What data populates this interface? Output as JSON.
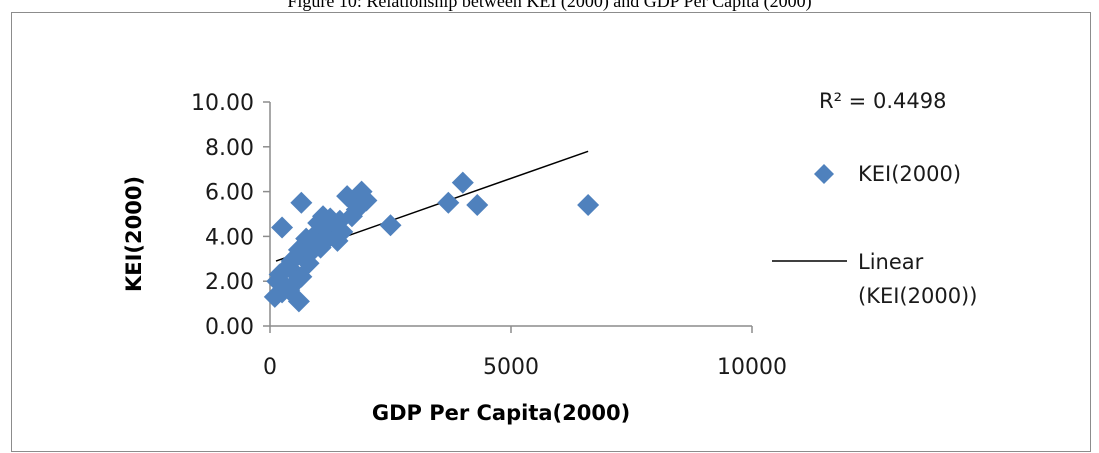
{
  "figure": {
    "caption": "Figure 10: Relationship between KEI (2000) and GDP Per Capita (2000)"
  },
  "chart_data": {
    "type": "scatter",
    "xlabel": "GDP Per Capita(2000)",
    "ylabel": "KEI(2000)",
    "xlim": [
      0,
      10000
    ],
    "ylim": [
      0,
      10
    ],
    "x_ticks": [
      "0",
      "5000",
      "10000"
    ],
    "y_ticks": [
      "0.00",
      "2.00",
      "4.00",
      "6.00",
      "8.00",
      "10.00"
    ],
    "grid": false,
    "legend_position": "right",
    "r_squared_label": "R² = 0.4498",
    "series": [
      {
        "name": "KEI(2000)",
        "marker": "diamond",
        "color": "#4f81bd",
        "points": [
          [
            100,
            1.3
          ],
          [
            150,
            2.0
          ],
          [
            200,
            2.3
          ],
          [
            250,
            1.5
          ],
          [
            300,
            1.8
          ],
          [
            350,
            2.6
          ],
          [
            250,
            4.4
          ],
          [
            400,
            1.6
          ],
          [
            450,
            2.9
          ],
          [
            500,
            2.4
          ],
          [
            550,
            2.0
          ],
          [
            600,
            1.1
          ],
          [
            650,
            2.2
          ],
          [
            550,
            3.1
          ],
          [
            600,
            3.4
          ],
          [
            650,
            5.5
          ],
          [
            700,
            3.6
          ],
          [
            750,
            3.9
          ],
          [
            800,
            2.8
          ],
          [
            850,
            3.3
          ],
          [
            900,
            3.7
          ],
          [
            950,
            4.1
          ],
          [
            1000,
            4.6
          ],
          [
            1050,
            3.5
          ],
          [
            1100,
            4.9
          ],
          [
            1150,
            4.3
          ],
          [
            1200,
            3.9
          ],
          [
            1250,
            4.8
          ],
          [
            1300,
            4.1
          ],
          [
            1350,
            4.5
          ],
          [
            1400,
            3.8
          ],
          [
            1450,
            4.7
          ],
          [
            1500,
            4.2
          ],
          [
            1600,
            5.8
          ],
          [
            1700,
            4.9
          ],
          [
            1750,
            5.5
          ],
          [
            1800,
            5.2
          ],
          [
            1900,
            6.0
          ],
          [
            2000,
            5.6
          ],
          [
            2500,
            4.5
          ],
          [
            3700,
            5.5
          ],
          [
            4000,
            6.4
          ],
          [
            4300,
            5.4
          ],
          [
            6600,
            5.4
          ]
        ]
      },
      {
        "name": "Linear (KEI(2000))",
        "type": "trendline",
        "color": "#000000",
        "x_range": [
          0,
          6600
        ],
        "y_endpoints": [
          2.9,
          7.8
        ]
      }
    ],
    "legend": {
      "entries": [
        {
          "label": "KEI(2000)"
        },
        {
          "label_line1": "Linear",
          "label_line2": "(KEI(2000))"
        }
      ]
    }
  }
}
